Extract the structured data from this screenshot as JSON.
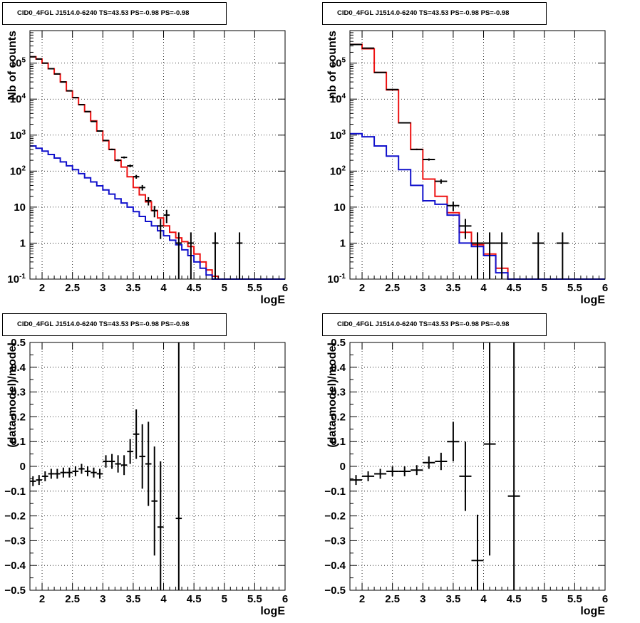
{
  "titles": [
    "CID0_4FGL J1514.0-6240 TS=43.53 PS=-0.98 PS=-0.98",
    "CID0_4FGL J1514.0-6240 TS=43.53 PS=-0.98 PS=-0.98",
    "CID0_4FGL J1514.0-6240 TS=43.53 PS=-0.98 PS=-0.98",
    "CID0_4FGL J1514.0-6240 TS=43.53 PS=-0.98 PS=-0.98"
  ],
  "colors": {
    "data": "#000000",
    "model_total": "#ee1111",
    "model_background": "#1111cc",
    "grid": "#000000"
  },
  "chart_data": [
    {
      "id": "top-left",
      "type": "histogram-line",
      "title": "CID0_4FGL J1514.0-6240 TS=43.53 PS=-0.98 PS=-0.98",
      "xlabel": "logE",
      "ylabel": "Nb of counts",
      "xlim": [
        1.8,
        6.0
      ],
      "ylim": [
        0.1,
        800000
      ],
      "yscale": "log",
      "grid": true,
      "xticks": [
        2,
        2.5,
        3,
        3.5,
        4,
        4.5,
        5,
        5.5,
        6
      ],
      "xtick_labels": [
        "2",
        "2.5",
        "3",
        "3.5",
        "4",
        "4.5",
        "5",
        "5.5",
        "6"
      ],
      "yticks": [
        0.1,
        1,
        10,
        100,
        1000,
        10000,
        100000
      ],
      "ytick_labels": [
        "10^-1",
        "1",
        "10",
        "10^2",
        "10^3",
        "10^4",
        "10^5"
      ],
      "bin_width": 0.1,
      "bin_edges_start": 1.8,
      "series": [
        {
          "kind": "model_total",
          "values": [
            150000,
            130000,
            100000,
            70000,
            50000,
            30000,
            17000,
            11000,
            7000,
            4500,
            2500,
            1300,
            700,
            400,
            200,
            130,
            70,
            35,
            22,
            14,
            8,
            5,
            3,
            2,
            1.4,
            1.1,
            0.8,
            0.5,
            0.3,
            0.18,
            0.12,
            0.1,
            0.1,
            0.1,
            0.1,
            0.1,
            0.1,
            0.1,
            0.1,
            0.1,
            0.1,
            0.1
          ]
        },
        {
          "kind": "model_background",
          "values": [
            500,
            430,
            360,
            290,
            230,
            180,
            140,
            110,
            85,
            65,
            50,
            39,
            30,
            23,
            17,
            13,
            10,
            7.5,
            5.5,
            4,
            3,
            2.2,
            1.6,
            1.2,
            0.9,
            0.65,
            0.45,
            0.3,
            0.2,
            0.13,
            0.1,
            0.1,
            0.1,
            0.1,
            0.1,
            0.1,
            0.1,
            0.1,
            0.1,
            0.1,
            0.1,
            0.1
          ]
        }
      ],
      "points": [
        {
          "x": 1.85,
          "y": 150000,
          "err": 400
        },
        {
          "x": 1.95,
          "y": 130000,
          "err": 360
        },
        {
          "x": 2.05,
          "y": 100000,
          "err": 316
        },
        {
          "x": 2.15,
          "y": 70000,
          "err": 265
        },
        {
          "x": 2.25,
          "y": 50000,
          "err": 224
        },
        {
          "x": 2.35,
          "y": 30000,
          "err": 173
        },
        {
          "x": 2.45,
          "y": 17000,
          "err": 130
        },
        {
          "x": 2.55,
          "y": 11000,
          "err": 105
        },
        {
          "x": 2.65,
          "y": 7000,
          "err": 84
        },
        {
          "x": 2.75,
          "y": 4500,
          "err": 67
        },
        {
          "x": 2.85,
          "y": 2400,
          "err": 49
        },
        {
          "x": 2.95,
          "y": 1300,
          "err": 36
        },
        {
          "x": 3.05,
          "y": 710,
          "err": 27
        },
        {
          "x": 3.15,
          "y": 400,
          "err": 20
        },
        {
          "x": 3.25,
          "y": 200,
          "err": 14
        },
        {
          "x": 3.35,
          "y": 240,
          "err": 15.5
        },
        {
          "x": 3.45,
          "y": 140,
          "err": 12
        },
        {
          "x": 3.55,
          "y": 70,
          "err": 8.4
        },
        {
          "x": 3.65,
          "y": 35,
          "err": 6
        },
        {
          "x": 3.75,
          "y": 15,
          "err": 3.9
        },
        {
          "x": 3.85,
          "y": 8,
          "err": 2.8
        },
        {
          "x": 3.95,
          "y": 3,
          "err": 1.7
        },
        {
          "x": 4.05,
          "y": 6,
          "err": 2.4
        },
        {
          "x": 4.25,
          "y": 1,
          "err": 0.99
        },
        {
          "x": 4.45,
          "y": 1,
          "err": 0.99
        },
        {
          "x": 4.85,
          "y": 1,
          "err": 0.99
        },
        {
          "x": 5.25,
          "y": 1,
          "err": 0.99
        }
      ]
    },
    {
      "id": "top-right",
      "type": "histogram-line",
      "title": "CID0_4FGL J1514.0-6240 TS=43.53 PS=-0.98 PS=-0.98",
      "xlabel": "logE",
      "ylabel": "nb of counts",
      "xlim": [
        1.8,
        6.0
      ],
      "ylim": [
        0.1,
        800000
      ],
      "yscale": "log",
      "grid": true,
      "xticks": [
        2,
        2.5,
        3,
        3.5,
        4,
        4.5,
        5,
        5.5,
        6
      ],
      "xtick_labels": [
        "2",
        "2.5",
        "3",
        "3.5",
        "4",
        "4.5",
        "5",
        "5.5",
        "6"
      ],
      "yticks": [
        0.1,
        1,
        10,
        100,
        1000,
        10000,
        100000
      ],
      "ytick_labels": [
        "10^-1",
        "1",
        "10",
        "10^2",
        "10^3",
        "10^4",
        "10^5"
      ],
      "bin_width": 0.2,
      "bin_edges_start": 1.8,
      "series": [
        {
          "kind": "model_total",
          "values": [
            330000,
            250000,
            55000,
            18000,
            2200,
            400,
            60,
            20,
            7,
            2,
            0.9,
            0.5,
            0.2,
            0.1,
            0.1,
            0.1,
            0.1,
            0.1,
            0.1,
            0.1,
            0.1
          ]
        },
        {
          "kind": "model_background",
          "values": [
            1100,
            900,
            500,
            260,
            110,
            40,
            15,
            12,
            6,
            1,
            0.8,
            0.45,
            0.15,
            0.1,
            0.1,
            0.1,
            0.1,
            0.1,
            0.1,
            0.1,
            0.1
          ]
        }
      ],
      "points": [
        {
          "x": 1.9,
          "y": 330000,
          "err": 574
        },
        {
          "x": 2.1,
          "y": 260000,
          "err": 510
        },
        {
          "x": 2.3,
          "y": 55000,
          "err": 234
        },
        {
          "x": 2.5,
          "y": 18500,
          "err": 136
        },
        {
          "x": 2.7,
          "y": 2200,
          "err": 47
        },
        {
          "x": 2.9,
          "y": 400,
          "err": 20
        },
        {
          "x": 3.1,
          "y": 210,
          "err": 14.5
        },
        {
          "x": 3.3,
          "y": 52,
          "err": 7.2
        },
        {
          "x": 3.5,
          "y": 11,
          "err": 3.3
        },
        {
          "x": 3.7,
          "y": 3,
          "err": 1.7
        },
        {
          "x": 3.9,
          "y": 1,
          "err": 0.99
        },
        {
          "x": 4.1,
          "y": 1,
          "err": 0.99
        },
        {
          "x": 4.3,
          "y": 1,
          "err": 0.99
        },
        {
          "x": 4.9,
          "y": 1,
          "err": 0.99
        },
        {
          "x": 5.3,
          "y": 1,
          "err": 0.99
        }
      ]
    },
    {
      "id": "bottom-left",
      "type": "scatter-errorbar",
      "title": "CID0_4FGL J1514.0-6240 TS=43.53 PS=-0.98 PS=-0.98",
      "xlabel": "logE",
      "ylabel": "(data-model)/model",
      "xlim": [
        1.8,
        6.0
      ],
      "ylim": [
        -0.5,
        0.5
      ],
      "yscale": "linear",
      "grid": true,
      "xticks": [
        2,
        2.5,
        3,
        3.5,
        4,
        4.5,
        5,
        5.5,
        6
      ],
      "xtick_labels": [
        "2",
        "2.5",
        "3",
        "3.5",
        "4",
        "4.5",
        "5",
        "5.5",
        "6"
      ],
      "yticks": [
        -0.5,
        -0.4,
        -0.3,
        -0.2,
        -0.1,
        0,
        0.1,
        0.2,
        0.3,
        0.4,
        0.5
      ],
      "ytick_labels": [
        "−0.5",
        "−0.4",
        "−0.3",
        "−0.2",
        "−0.1",
        "0",
        "0.1",
        "0.2",
        "0.3",
        "0.4",
        "0.5"
      ],
      "xerr": 0.05,
      "points": [
        {
          "x": 1.85,
          "y": -0.06,
          "err": 0.02
        },
        {
          "x": 1.95,
          "y": -0.055,
          "err": 0.02
        },
        {
          "x": 2.05,
          "y": -0.04,
          "err": 0.02
        },
        {
          "x": 2.15,
          "y": -0.03,
          "err": 0.02
        },
        {
          "x": 2.25,
          "y": -0.03,
          "err": 0.02
        },
        {
          "x": 2.35,
          "y": -0.025,
          "err": 0.02
        },
        {
          "x": 2.45,
          "y": -0.025,
          "err": 0.02
        },
        {
          "x": 2.55,
          "y": -0.02,
          "err": 0.02
        },
        {
          "x": 2.65,
          "y": -0.01,
          "err": 0.02
        },
        {
          "x": 2.75,
          "y": -0.02,
          "err": 0.02
        },
        {
          "x": 2.85,
          "y": -0.025,
          "err": 0.02
        },
        {
          "x": 2.95,
          "y": -0.03,
          "err": 0.02
        },
        {
          "x": 3.05,
          "y": 0.02,
          "err": 0.025
        },
        {
          "x": 3.15,
          "y": 0.02,
          "err": 0.03
        },
        {
          "x": 3.25,
          "y": 0.01,
          "err": 0.035
        },
        {
          "x": 3.35,
          "y": 0.005,
          "err": 0.04
        },
        {
          "x": 3.45,
          "y": 0.06,
          "err": 0.05
        },
        {
          "x": 3.55,
          "y": 0.13,
          "err": 0.1
        },
        {
          "x": 3.65,
          "y": 0.04,
          "err": 0.13
        },
        {
          "x": 3.75,
          "y": 0.01,
          "err": 0.17
        },
        {
          "x": 3.85,
          "y": -0.14,
          "err": 0.22
        },
        {
          "x": 3.95,
          "y": -0.245,
          "err": 0.265
        },
        {
          "x": 4.25,
          "y": -0.21,
          "err": 0.79
        }
      ]
    },
    {
      "id": "bottom-right",
      "type": "scatter-errorbar",
      "title": "CID0_4FGL J1514.0-6240 TS=43.53 PS=-0.98 PS=-0.98",
      "xlabel": "logE",
      "ylabel": "(data-model)/model",
      "xlim": [
        1.8,
        6.0
      ],
      "ylim": [
        -0.5,
        0.5
      ],
      "yscale": "linear",
      "grid": true,
      "xticks": [
        2,
        2.5,
        3,
        3.5,
        4,
        4.5,
        5,
        5.5,
        6
      ],
      "xtick_labels": [
        "2",
        "2.5",
        "3",
        "3.5",
        "4",
        "4.5",
        "5",
        "5.5",
        "6"
      ],
      "yticks": [
        -0.5,
        -0.4,
        -0.3,
        -0.2,
        -0.1,
        0,
        0.1,
        0.2,
        0.3,
        0.4,
        0.5
      ],
      "ytick_labels": [
        "−0.5",
        "−0.4",
        "−0.3",
        "−0.2",
        "−0.1",
        "0",
        "0.1",
        "0.2",
        "0.3",
        "0.4",
        "0.5"
      ],
      "xerr": 0.1,
      "points": [
        {
          "x": 1.9,
          "y": -0.055,
          "err": 0.02
        },
        {
          "x": 2.1,
          "y": -0.04,
          "err": 0.02
        },
        {
          "x": 2.3,
          "y": -0.03,
          "err": 0.02
        },
        {
          "x": 2.5,
          "y": -0.02,
          "err": 0.02
        },
        {
          "x": 2.7,
          "y": -0.02,
          "err": 0.02
        },
        {
          "x": 2.9,
          "y": -0.015,
          "err": 0.02
        },
        {
          "x": 3.1,
          "y": 0.015,
          "err": 0.025
        },
        {
          "x": 3.3,
          "y": 0.02,
          "err": 0.035
        },
        {
          "x": 3.5,
          "y": 0.1,
          "err": 0.08
        },
        {
          "x": 3.7,
          "y": -0.04,
          "err": 0.14
        },
        {
          "x": 3.9,
          "y": -0.38,
          "err": 0.185
        },
        {
          "x": 4.1,
          "y": 0.09,
          "err": 0.45
        },
        {
          "x": 4.5,
          "y": -0.12,
          "err": 0.65
        }
      ]
    }
  ]
}
